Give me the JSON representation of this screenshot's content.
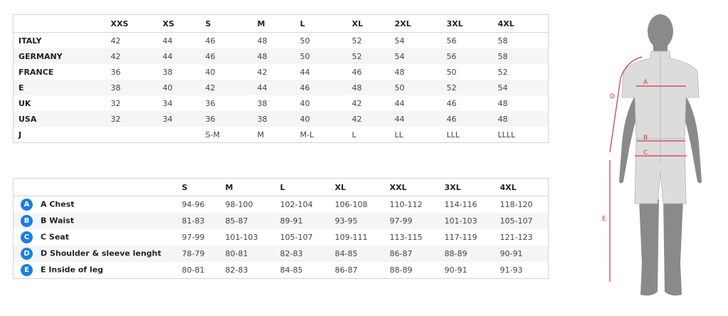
{
  "size_conversion": {
    "headers": [
      "",
      "XXS",
      "XS",
      "S",
      "M",
      "L",
      "XL",
      "2XL",
      "3XL",
      "4XL"
    ],
    "rows": [
      {
        "label": "ITALY",
        "values": [
          "42",
          "44",
          "46",
          "48",
          "50",
          "52",
          "54",
          "56",
          "58"
        ]
      },
      {
        "label": "GERMANY",
        "values": [
          "42",
          "44",
          "46",
          "48",
          "50",
          "52",
          "54",
          "56",
          "58"
        ]
      },
      {
        "label": "FRANCE",
        "values": [
          "36",
          "38",
          "40",
          "42",
          "44",
          "46",
          "48",
          "50",
          "52"
        ]
      },
      {
        "label": "E",
        "values": [
          "38",
          "40",
          "42",
          "44",
          "46",
          "48",
          "50",
          "52",
          "54"
        ]
      },
      {
        "label": "UK",
        "values": [
          "32",
          "34",
          "36",
          "38",
          "40",
          "42",
          "44",
          "46",
          "48"
        ]
      },
      {
        "label": "USA",
        "values": [
          "32",
          "34",
          "36",
          "38",
          "40",
          "42",
          "44",
          "46",
          "48"
        ]
      },
      {
        "label": "J",
        "values": [
          "",
          "",
          "S-M",
          "M",
          "M-L",
          "L",
          "LL",
          "LLL",
          "LLLL"
        ]
      }
    ]
  },
  "measurements": {
    "headers": [
      "",
      "S",
      "M",
      "L",
      "XL",
      "XXL",
      "3XL",
      "4XL"
    ],
    "rows": [
      {
        "badge": "A",
        "label": "A Chest",
        "values": [
          "94-96",
          "98-100",
          "102-104",
          "106-108",
          "110-112",
          "114-116",
          "118-120"
        ]
      },
      {
        "badge": "B",
        "label": "B Waist",
        "values": [
          "81-83",
          "85-87",
          "89-91",
          "93-95",
          "97-99",
          "101-103",
          "105-107"
        ]
      },
      {
        "badge": "C",
        "label": "C Seat",
        "values": [
          "97-99",
          "101-103",
          "105-107",
          "109-111",
          "113-115",
          "117-119",
          "121-123"
        ]
      },
      {
        "badge": "D",
        "label": "D Shoulder & sleeve lenght",
        "values": [
          "78-79",
          "80-81",
          "82-83",
          "84-85",
          "86-87",
          "88-89",
          "90-91"
        ]
      },
      {
        "badge": "E",
        "label": "E Inside of leg",
        "values": [
          "80-81",
          "82-83",
          "84-85",
          "86-87",
          "88-89",
          "90-91",
          "91-93"
        ]
      }
    ]
  },
  "figure": {
    "labels": {
      "A": "A",
      "B": "B",
      "C": "C",
      "D": "D",
      "E": "E"
    }
  },
  "colors": {
    "badge": "#1a7fe0",
    "measure_line": "#d0344a",
    "skin": "#8a8a8a",
    "garment": "#dcdcdc"
  }
}
